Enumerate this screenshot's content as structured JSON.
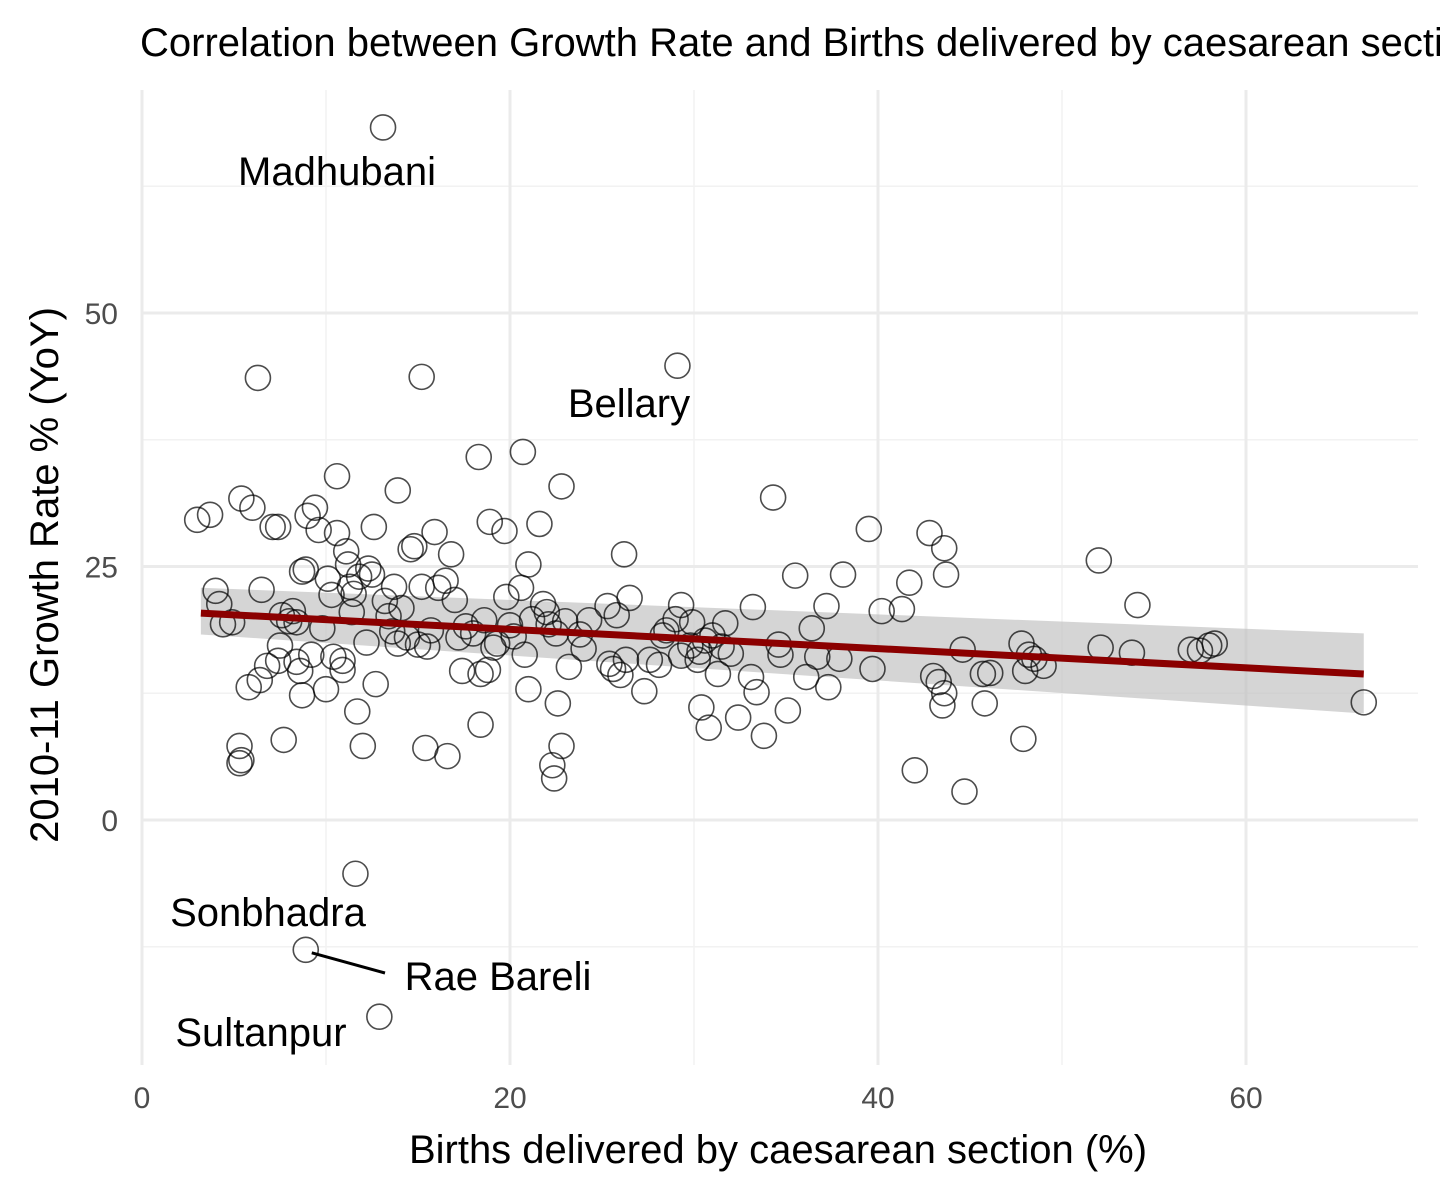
{
  "chart_data": {
    "type": "scatter",
    "title": "Correlation between Growth Rate and Births delivered by caesarean section",
    "xlabel": "Births delivered by caesarean section (%)",
    "ylabel": "2010-11 Growth Rate % (YoY)",
    "xlim": [
      0,
      69.5
    ],
    "ylim": [
      -24,
      72
    ],
    "x_ticks": [
      "0",
      "20",
      "40",
      "60"
    ],
    "y_ticks": [
      "0",
      "25",
      "50"
    ],
    "grid": true,
    "legend": "none",
    "colors": {
      "points": "#000000",
      "trend_line": "#8b0000",
      "confidence_band": "#bebebe"
    },
    "trend": {
      "x": [
        3.2,
        66.4
      ],
      "y": [
        20.4,
        14.4
      ],
      "band_upper": [
        22.9,
        18.4
      ],
      "band_lower": [
        18.3,
        10.5
      ]
    },
    "labels": [
      {
        "text": "Madhubani",
        "x": 13.1,
        "y": 68.3
      },
      {
        "text": "Bellary",
        "x": 29.1,
        "y": 44.8
      },
      {
        "text": "Sonbhadra",
        "x": 11.6,
        "y": -5.3
      },
      {
        "text": "Rae Bareli",
        "x": 8.9,
        "y": -12.8
      },
      {
        "text": "Sultanpur",
        "x": 12.9,
        "y": -19.4
      }
    ],
    "points": [
      [
        13.1,
        68.3
      ],
      [
        29.1,
        44.8
      ],
      [
        6.3,
        43.6
      ],
      [
        15.2,
        43.7
      ],
      [
        11.6,
        -5.3
      ],
      [
        8.9,
        -12.8
      ],
      [
        12.9,
        -19.4
      ],
      [
        3.0,
        29.6
      ],
      [
        3.7,
        30.1
      ],
      [
        4.0,
        22.6
      ],
      [
        4.2,
        21.3
      ],
      [
        4.4,
        19.3
      ],
      [
        4.9,
        19.5
      ],
      [
        5.4,
        31.7
      ],
      [
        5.3,
        7.3
      ],
      [
        5.3,
        5.6
      ],
      [
        5.4,
        5.9
      ],
      [
        5.8,
        13.1
      ],
      [
        6.0,
        30.8
      ],
      [
        6.4,
        13.8
      ],
      [
        6.5,
        22.7
      ],
      [
        6.8,
        15.2
      ],
      [
        7.1,
        28.9
      ],
      [
        7.4,
        28.9
      ],
      [
        7.4,
        15.7
      ],
      [
        7.5,
        17.2
      ],
      [
        7.6,
        20.2
      ],
      [
        7.7,
        7.9
      ],
      [
        8.0,
        19.6
      ],
      [
        8.2,
        20.6
      ],
      [
        8.4,
        15.6
      ],
      [
        8.4,
        19.5
      ],
      [
        8.6,
        14.7
      ],
      [
        8.7,
        12.3
      ],
      [
        8.7,
        24.5
      ],
      [
        8.9,
        24.7
      ],
      [
        9.0,
        30.0
      ],
      [
        9.2,
        16.3
      ],
      [
        9.4,
        30.8
      ],
      [
        9.6,
        28.6
      ],
      [
        9.8,
        18.9
      ],
      [
        10.0,
        12.9
      ],
      [
        10.1,
        23.8
      ],
      [
        10.3,
        22.2
      ],
      [
        10.4,
        16.1
      ],
      [
        10.6,
        33.9
      ],
      [
        10.6,
        28.3
      ],
      [
        10.9,
        14.8
      ],
      [
        10.9,
        15.7
      ],
      [
        11.1,
        26.5
      ],
      [
        11.2,
        25.2
      ],
      [
        11.3,
        23.0
      ],
      [
        11.4,
        20.5
      ],
      [
        11.5,
        22.3
      ],
      [
        11.8,
        24.0
      ],
      [
        11.7,
        10.7
      ],
      [
        12.0,
        7.3
      ],
      [
        12.2,
        17.5
      ],
      [
        12.3,
        24.8
      ],
      [
        12.5,
        24.2
      ],
      [
        12.6,
        28.9
      ],
      [
        12.7,
        13.4
      ],
      [
        13.2,
        21.6
      ],
      [
        13.4,
        20.1
      ],
      [
        13.6,
        18.6
      ],
      [
        13.7,
        23.0
      ],
      [
        13.9,
        32.5
      ],
      [
        13.9,
        17.4
      ],
      [
        14.1,
        20.9
      ],
      [
        14.4,
        18.0
      ],
      [
        14.6,
        26.7
      ],
      [
        14.8,
        27.0
      ],
      [
        15.0,
        17.3
      ],
      [
        15.2,
        23.0
      ],
      [
        15.4,
        7.1
      ],
      [
        15.5,
        17.1
      ],
      [
        15.7,
        18.7
      ],
      [
        15.9,
        28.4
      ],
      [
        16.1,
        22.9
      ],
      [
        16.5,
        23.6
      ],
      [
        16.6,
        6.3
      ],
      [
        16.8,
        26.2
      ],
      [
        17.0,
        21.7
      ],
      [
        17.2,
        18.0
      ],
      [
        17.4,
        14.7
      ],
      [
        17.6,
        19.1
      ],
      [
        18.0,
        18.4
      ],
      [
        18.3,
        35.8
      ],
      [
        18.4,
        14.4
      ],
      [
        18.4,
        9.4
      ],
      [
        18.6,
        19.7
      ],
      [
        18.8,
        14.8
      ],
      [
        18.9,
        29.4
      ],
      [
        19.1,
        17.0
      ],
      [
        19.3,
        17.4
      ],
      [
        19.7,
        28.5
      ],
      [
        19.8,
        22.0
      ],
      [
        20.0,
        19.2
      ],
      [
        20.2,
        18.1
      ],
      [
        20.6,
        22.9
      ],
      [
        20.7,
        36.3
      ],
      [
        20.8,
        16.3
      ],
      [
        21.0,
        25.2
      ],
      [
        21.0,
        12.9
      ],
      [
        21.2,
        19.8
      ],
      [
        21.6,
        29.2
      ],
      [
        21.8,
        21.3
      ],
      [
        22.0,
        20.5
      ],
      [
        22.1,
        19.3
      ],
      [
        22.3,
        5.4
      ],
      [
        22.4,
        4.1
      ],
      [
        22.5,
        18.4
      ],
      [
        22.6,
        11.5
      ],
      [
        22.8,
        32.9
      ],
      [
        22.8,
        7.3
      ],
      [
        23.0,
        19.6
      ],
      [
        23.2,
        15.1
      ],
      [
        23.8,
        18.3
      ],
      [
        24.0,
        16.9
      ],
      [
        24.3,
        19.7
      ],
      [
        25.3,
        21.1
      ],
      [
        25.4,
        15.4
      ],
      [
        25.6,
        14.9
      ],
      [
        25.8,
        20.2
      ],
      [
        26.0,
        14.3
      ],
      [
        26.2,
        26.2
      ],
      [
        26.3,
        15.8
      ],
      [
        26.5,
        21.9
      ],
      [
        27.3,
        12.7
      ],
      [
        27.6,
        15.8
      ],
      [
        28.1,
        15.3
      ],
      [
        28.3,
        18.2
      ],
      [
        28.5,
        18.7
      ],
      [
        29.0,
        19.8
      ],
      [
        29.3,
        21.2
      ],
      [
        29.3,
        16.2
      ],
      [
        29.8,
        17.2
      ],
      [
        29.9,
        19.5
      ],
      [
        30.2,
        15.8
      ],
      [
        30.3,
        16.6
      ],
      [
        30.4,
        11.1
      ],
      [
        30.6,
        17.7
      ],
      [
        30.8,
        9.1
      ],
      [
        31.0,
        18.2
      ],
      [
        31.3,
        14.4
      ],
      [
        31.5,
        17.1
      ],
      [
        31.7,
        19.4
      ],
      [
        32.0,
        16.4
      ],
      [
        32.4,
        10.1
      ],
      [
        33.1,
        14.1
      ],
      [
        33.2,
        21.0
      ],
      [
        33.4,
        12.6
      ],
      [
        33.8,
        8.3
      ],
      [
        34.3,
        31.8
      ],
      [
        34.6,
        17.3
      ],
      [
        34.7,
        16.3
      ],
      [
        35.1,
        10.8
      ],
      [
        35.5,
        24.1
      ],
      [
        36.1,
        14.1
      ],
      [
        36.4,
        18.9
      ],
      [
        36.7,
        16.1
      ],
      [
        37.2,
        21.1
      ],
      [
        37.3,
        13.1
      ],
      [
        37.9,
        15.9
      ],
      [
        38.1,
        24.2
      ],
      [
        39.5,
        28.7
      ],
      [
        39.7,
        14.9
      ],
      [
        40.2,
        20.6
      ],
      [
        41.3,
        20.8
      ],
      [
        41.7,
        23.4
      ],
      [
        42.0,
        4.9
      ],
      [
        42.8,
        28.3
      ],
      [
        43.0,
        14.2
      ],
      [
        43.3,
        13.6
      ],
      [
        43.5,
        11.3
      ],
      [
        43.6,
        12.5
      ],
      [
        43.6,
        26.8
      ],
      [
        43.7,
        24.2
      ],
      [
        44.6,
        16.8
      ],
      [
        44.7,
        2.8
      ],
      [
        45.7,
        14.4
      ],
      [
        45.8,
        11.5
      ],
      [
        46.1,
        14.5
      ],
      [
        47.8,
        17.4
      ],
      [
        47.9,
        8.0
      ],
      [
        48.0,
        14.7
      ],
      [
        48.2,
        16.3
      ],
      [
        48.5,
        15.9
      ],
      [
        49.0,
        15.2
      ],
      [
        52.0,
        25.6
      ],
      [
        52.1,
        17.0
      ],
      [
        53.8,
        16.5
      ],
      [
        54.1,
        21.2
      ],
      [
        57.0,
        16.8
      ],
      [
        57.5,
        16.7
      ],
      [
        58.0,
        17.2
      ],
      [
        58.3,
        17.4
      ],
      [
        66.4,
        11.6
      ]
    ]
  }
}
